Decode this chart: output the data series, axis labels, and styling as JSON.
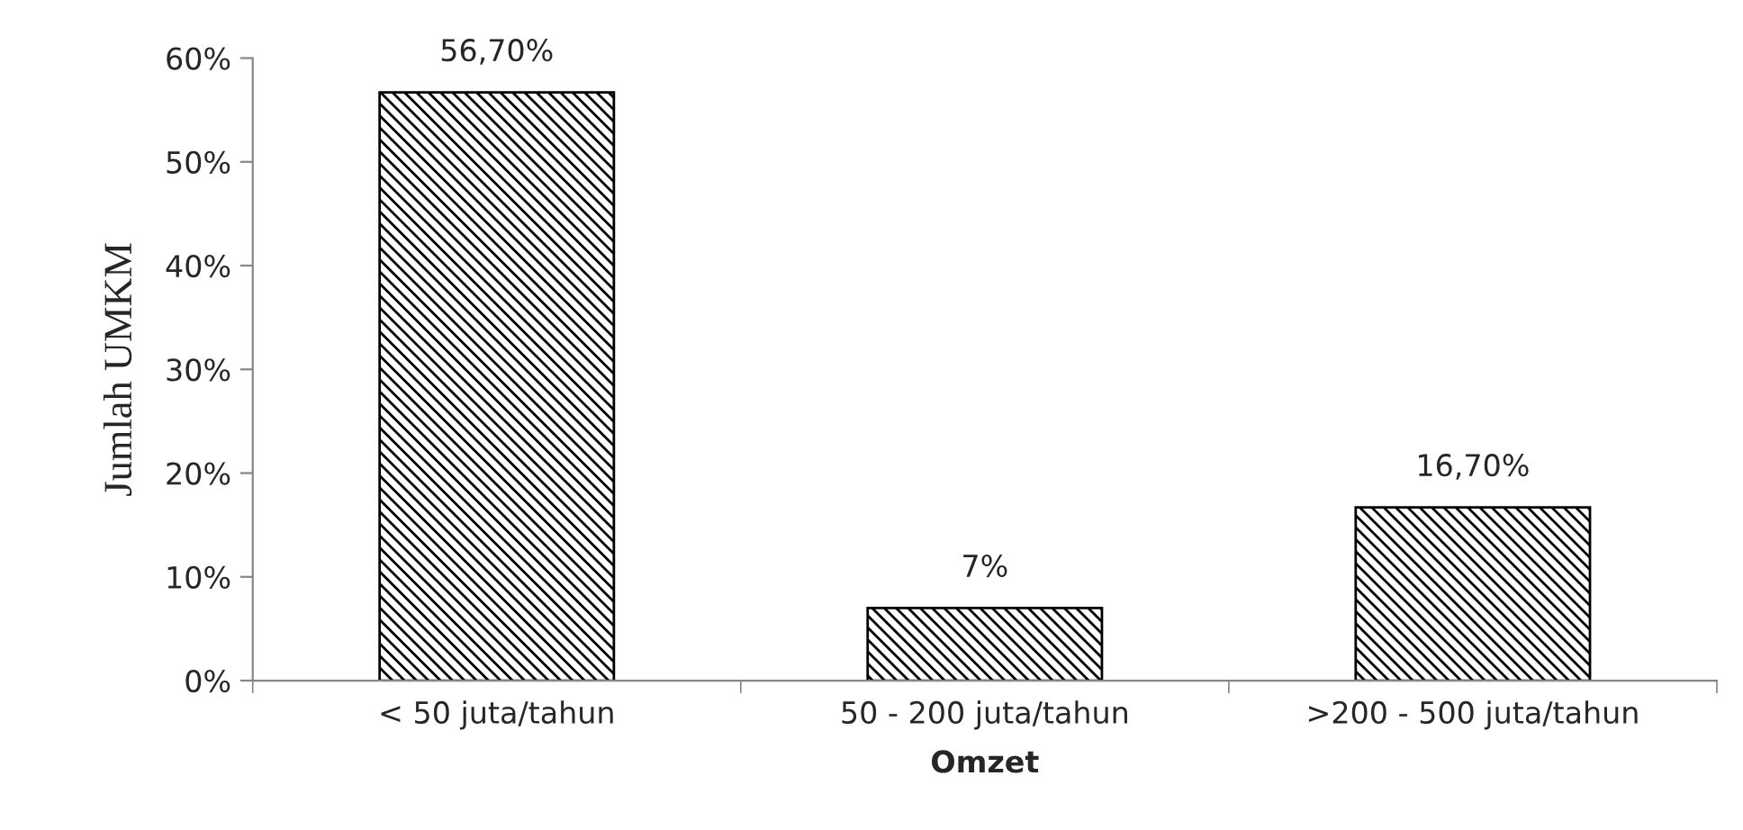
{
  "chart_data": {
    "type": "bar",
    "xlabel": "Omzet",
    "ylabel": "Jumlah UMKM",
    "categories": [
      "< 50 juta/tahun",
      "50 - 200 juta/tahun",
      ">200 - 500 juta/tahun"
    ],
    "values": [
      56.7,
      7,
      16.7
    ],
    "color": "#000000",
    "value_labels": [
      "56,70%",
      "7%",
      "16,70%"
    ],
    "ylim": [
      0,
      60
    ],
    "yticks": [
      {
        "value": 0,
        "label": "0%"
      },
      {
        "value": 10,
        "label": "10%"
      },
      {
        "value": 20,
        "label": "20%"
      },
      {
        "value": 30,
        "label": "30%"
      },
      {
        "value": 40,
        "label": "40%"
      },
      {
        "value": 50,
        "label": "50%"
      },
      {
        "value": 60,
        "label": "60%"
      }
    ],
    "grid": false,
    "legend": false
  }
}
